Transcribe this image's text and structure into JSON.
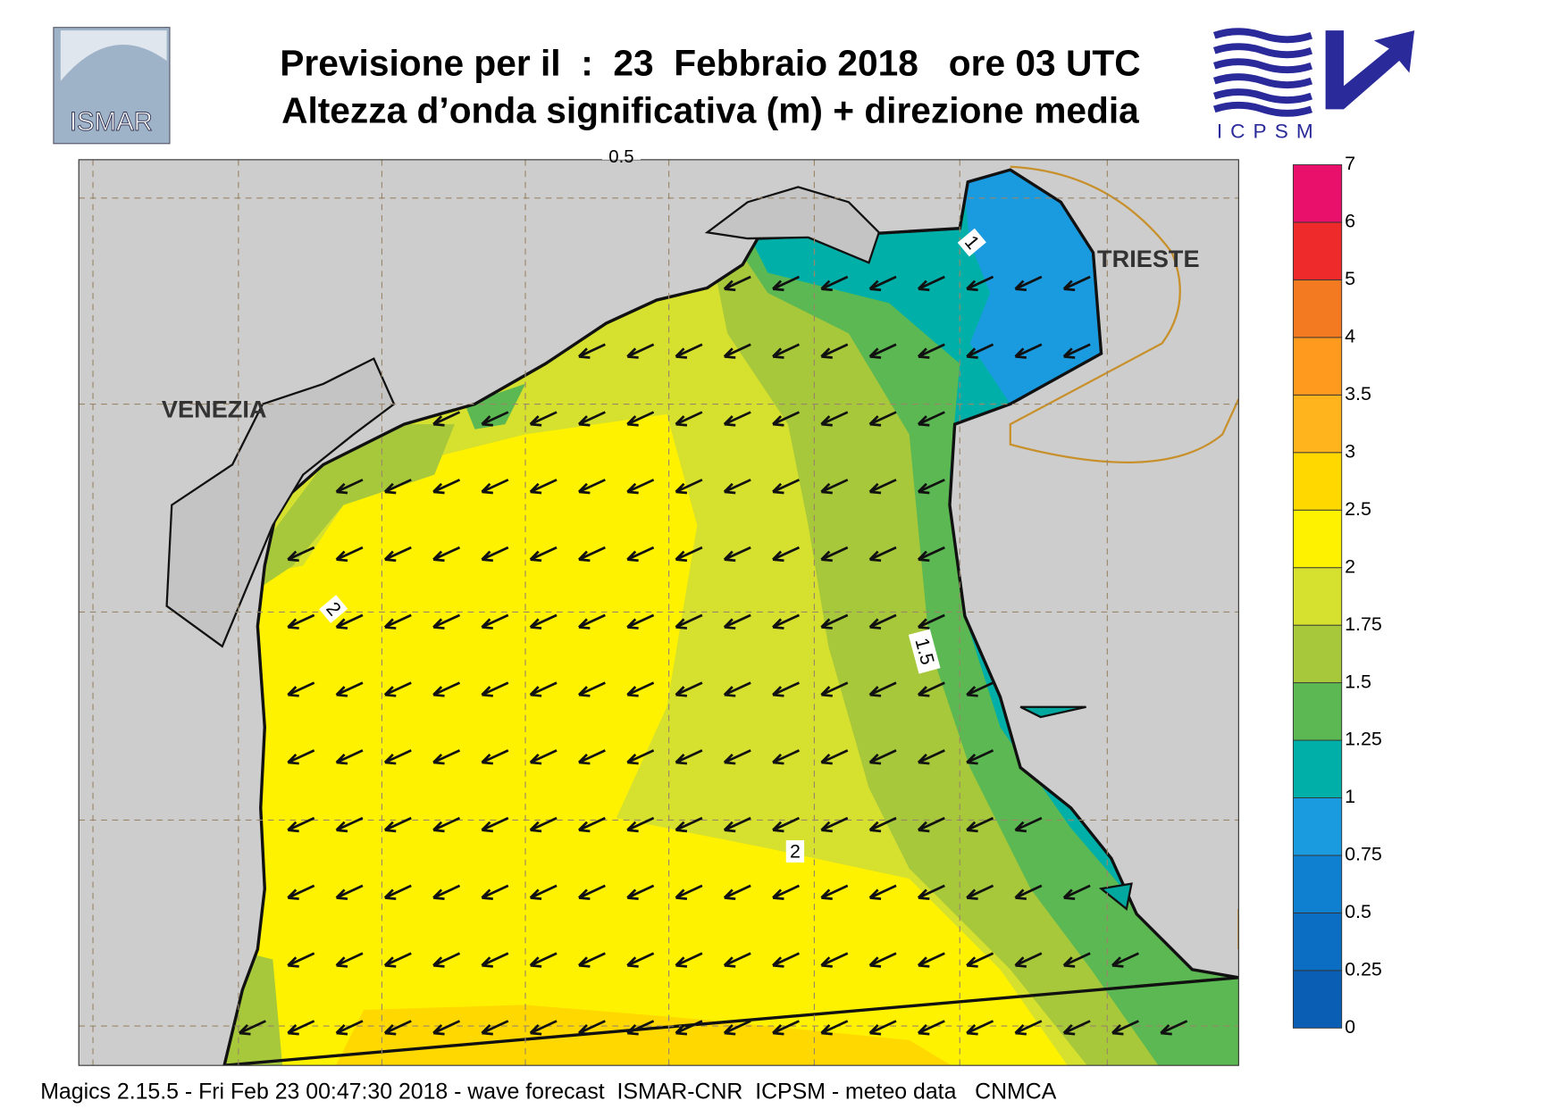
{
  "header": {
    "title_line1": "Previsione per il  :  23  Febbraio 2018   ore 03 UTC",
    "title_line2": "Altezza d’onda significativa (m) + direzione media"
  },
  "logos": {
    "left": "ISMAR",
    "right": "ICPSM"
  },
  "map": {
    "place_labels": [
      "VENEZIA",
      "TRIESTE"
    ],
    "contour_labels": [
      0.5,
      1,
      1.5,
      2,
      2
    ]
  },
  "colorbar": {
    "levels": [
      0,
      0.25,
      0.5,
      0.75,
      1,
      1.25,
      1.5,
      1.75,
      2,
      2.5,
      3,
      3.5,
      4,
      5,
      6,
      7
    ],
    "colors": [
      "#0a5fb4",
      "#0b6ec2",
      "#0f7fcf",
      "#1a9be0",
      "#00b0a8",
      "#5cb852",
      "#a6c83a",
      "#d6e02e",
      "#fff200",
      "#ffd800",
      "#ffb41e",
      "#ff9a1e",
      "#f47a22",
      "#ee2a2a",
      "#e8106a"
    ]
  },
  "footer": "Magics 2.15.5 - Fri Feb 23 00:47:30 2018 - wave forecast  ISMAR-CNR  ICPSM - meteo data   CNMCA"
}
